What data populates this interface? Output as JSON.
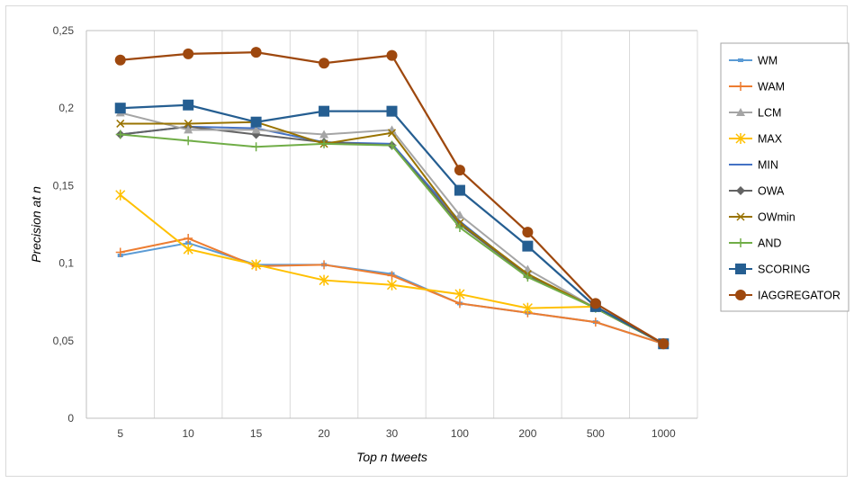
{
  "chart_data": {
    "type": "line",
    "xlabel": "Top n tweets",
    "ylabel": "Precision at n",
    "categories": [
      "5",
      "10",
      "15",
      "20",
      "30",
      "100",
      "200",
      "500",
      "1000"
    ],
    "ylim": [
      0,
      0.25
    ],
    "yticks": [
      0,
      0.05,
      0.1,
      0.15,
      0.2,
      0.25
    ],
    "ytick_labels": [
      "0",
      "0,05",
      "0,1",
      "0,15",
      "0,2",
      "0,25"
    ],
    "grid": "vertical",
    "legend_position": "right",
    "series": [
      {
        "name": "WM",
        "color": "#5b9bd5",
        "marker": "square-small",
        "values": [
          0.105,
          0.113,
          0.099,
          0.099,
          0.093,
          0.074,
          0.068,
          0.062,
          0.048
        ]
      },
      {
        "name": "WAM",
        "color": "#ed7d31",
        "marker": "plus",
        "values": [
          0.107,
          0.116,
          0.098,
          0.099,
          0.092,
          0.074,
          0.068,
          0.062,
          0.048
        ]
      },
      {
        "name": "LCM",
        "color": "#a5a5a5",
        "marker": "triangle",
        "values": [
          0.197,
          0.186,
          0.186,
          0.183,
          0.186,
          0.131,
          0.096,
          0.071,
          0.048
        ]
      },
      {
        "name": "MAX",
        "color": "#ffc000",
        "marker": "asterisk",
        "values": [
          0.144,
          0.109,
          0.099,
          0.089,
          0.086,
          0.08,
          0.071,
          0.072,
          0.048
        ]
      },
      {
        "name": "MIN",
        "color": "#4472c4",
        "marker": "none",
        "values": [
          0.183,
          0.188,
          0.187,
          0.178,
          0.177,
          0.127,
          0.092,
          0.071,
          0.048
        ]
      },
      {
        "name": "OWA",
        "color": "#636363",
        "marker": "diamond",
        "values": [
          0.183,
          0.188,
          0.183,
          0.178,
          0.176,
          0.125,
          0.092,
          0.071,
          0.048
        ]
      },
      {
        "name": "OWmin",
        "color": "#997300",
        "marker": "x",
        "values": [
          0.19,
          0.19,
          0.191,
          0.177,
          0.184,
          0.126,
          0.093,
          0.071,
          0.048
        ]
      },
      {
        "name": "AND",
        "color": "#70ad47",
        "marker": "plus",
        "values": [
          0.183,
          0.179,
          0.175,
          0.177,
          0.176,
          0.123,
          0.091,
          0.071,
          0.048
        ]
      },
      {
        "name": "SCORING",
        "color": "#255e91",
        "marker": "square",
        "values": [
          0.2,
          0.202,
          0.191,
          0.198,
          0.198,
          0.147,
          0.111,
          0.072,
          0.048
        ]
      },
      {
        "name": "IAGGREGATOR",
        "color": "#9e480e",
        "marker": "circle",
        "values": [
          0.231,
          0.235,
          0.236,
          0.229,
          0.234,
          0.16,
          0.12,
          0.074,
          0.048
        ]
      }
    ]
  }
}
